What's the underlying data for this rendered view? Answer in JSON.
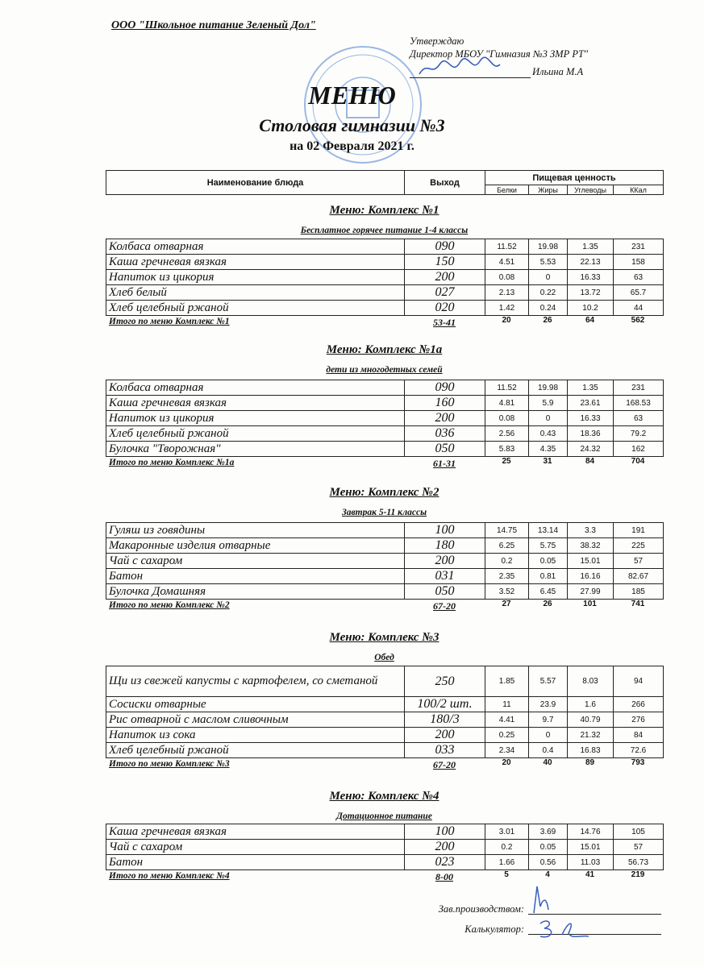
{
  "header": {
    "organization": "ООО \"Школьное питание Зеленый Дол\"",
    "approve": "Утверждаю",
    "director": "Директор МБОУ \"Гимназия №3 ЗМР РТ\"",
    "director_name": "Ильина М.А",
    "title": "МЕНЮ",
    "subtitle": "Столовая гимназии №3",
    "date": "на 02 Февраля 2021 г."
  },
  "stamp": {
    "text": "Гимназия №3 Зеленодольского муниципального района Республики Татарстан",
    "color": "#4a7fd0"
  },
  "columns": {
    "name": "Наименование блюда",
    "output": "Выход",
    "nutrition": "Пищевая ценность",
    "protein": "Белки",
    "fat": "Жиры",
    "carbs": "Углеводы",
    "kcal": "ККал"
  },
  "sections": [
    {
      "title": "Меню: Комплекс №1",
      "subtitle": "Бесплатное горячее питание  1-4 классы",
      "rows": [
        [
          "Колбаса отварная",
          "090",
          "11.52",
          "19.98",
          "1.35",
          "231"
        ],
        [
          "Каша гречневая вязкая",
          "150",
          "4.51",
          "5.53",
          "22.13",
          "158"
        ],
        [
          "Напиток из цикория",
          "200",
          "0.08",
          "0",
          "16.33",
          "63"
        ],
        [
          "Хлеб белый",
          "027",
          "2.13",
          "0.22",
          "13.72",
          "65.7"
        ],
        [
          "Хлеб  целебный ржаной",
          "020",
          "1.42",
          "0.24",
          "10.2",
          "44"
        ]
      ],
      "total": {
        "label": "Итого по меню Комплекс №1",
        "price": "53-41",
        "values": [
          "20",
          "26",
          "64",
          "562"
        ]
      }
    },
    {
      "title": "Меню: Комплекс №1а",
      "subtitle": "дети из многодетных семей",
      "rows": [
        [
          "Колбаса отварная",
          "090",
          "11.52",
          "19.98",
          "1.35",
          "231"
        ],
        [
          "Каша гречневая вязкая",
          "160",
          "4.81",
          "5.9",
          "23.61",
          "168.53"
        ],
        [
          "Напиток из цикория",
          "200",
          "0.08",
          "0",
          "16.33",
          "63"
        ],
        [
          "Хлеб  целебный ржаной",
          "036",
          "2.56",
          "0.43",
          "18.36",
          "79.2"
        ],
        [
          "Булочка \"Творожная\"",
          "050",
          "5.83",
          "4.35",
          "24.32",
          "162"
        ]
      ],
      "total": {
        "label": "Итого по меню Комплекс №1а",
        "price": "61-31",
        "values": [
          "25",
          "31",
          "84",
          "704"
        ]
      }
    },
    {
      "title": "Меню: Комплекс №2",
      "subtitle": "Завтрак 5-11 классы",
      "rows": [
        [
          "Гуляш из говядины",
          "100",
          "14.75",
          "13.14",
          "3.3",
          "191"
        ],
        [
          "Макаронные изделия отварные",
          "180",
          "6.25",
          "5.75",
          "38.32",
          "225"
        ],
        [
          "Чай с сахаром",
          "200",
          "0.2",
          "0.05",
          "15.01",
          "57"
        ],
        [
          "Батон",
          "031",
          "2.35",
          "0.81",
          "16.16",
          "82.67"
        ],
        [
          "Булочка Домашняя",
          "050",
          "3.52",
          "6.45",
          "27.99",
          "185"
        ]
      ],
      "total": {
        "label": "Итого по меню Комплекс №2",
        "price": "67-20",
        "values": [
          "27",
          "26",
          "101",
          "741"
        ]
      }
    },
    {
      "title": "Меню: Комплекс №3",
      "subtitle": "Обед",
      "rows": [
        [
          "Щи из свежей капусты с картофелем, со сметаной",
          "250",
          "1.85",
          "5.57",
          "8.03",
          "94"
        ],
        [
          "Сосиски  отварные",
          "100/2 шт.",
          "11",
          "23.9",
          "1.6",
          "266"
        ],
        [
          "Рис отварной с маслом сливочным",
          "180/3",
          "4.41",
          "9.7",
          "40.79",
          "276"
        ],
        [
          "Напиток  из сока",
          "200",
          "0.25",
          "0",
          "21.32",
          "84"
        ],
        [
          "Хлеб  целебный ржаной",
          "033",
          "2.34",
          "0.4",
          "16.83",
          "72.6"
        ]
      ],
      "total": {
        "label": "Итого по меню Комплекс №3",
        "price": "67-20",
        "values": [
          "20",
          "40",
          "89",
          "793"
        ]
      }
    },
    {
      "title": "Меню: Комплекс №4",
      "subtitle": "Дотационное питание",
      "rows": [
        [
          "Каша гречневая вязкая",
          "100",
          "3.01",
          "3.69",
          "14.76",
          "105"
        ],
        [
          "Чай с сахаром",
          "200",
          "0.2",
          "0.05",
          "15.01",
          "57"
        ],
        [
          "Батон",
          "023",
          "1.66",
          "0.56",
          "11.03",
          "56.73"
        ]
      ],
      "total": {
        "label": "Итого по меню Комплекс №4",
        "price": "8-00",
        "values": [
          "5",
          "4",
          "41",
          "219"
        ]
      }
    }
  ],
  "footer": {
    "production_head": "Зав.производством:",
    "calculator": "Калькулятор:"
  }
}
